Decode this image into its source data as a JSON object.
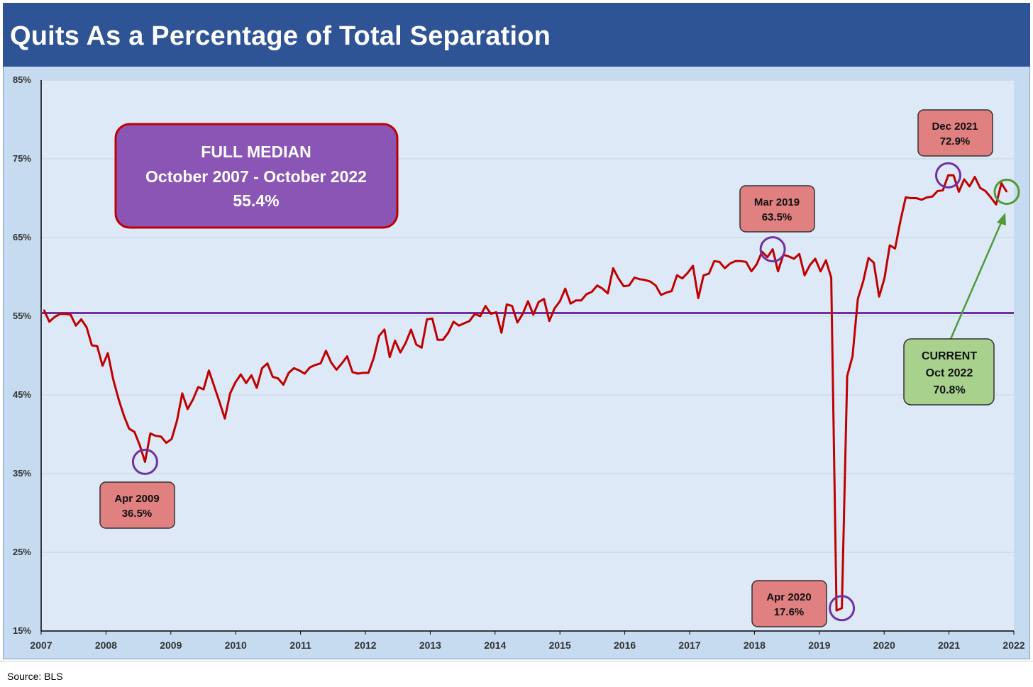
{
  "title": "Quits As a Percentage of Total Separation",
  "source": "Source: BLS",
  "colors": {
    "title_bg": "#2f5496",
    "plot_bg": "#dde9f6",
    "frame_bg": "#c6dbef",
    "series": "#c00000",
    "median_line": "#7030a0",
    "callout_red": "#e08080",
    "callout_purple": "#8a55b5",
    "callout_green": "#a9d18e",
    "current_circle": "#4f9a3a"
  },
  "median_box": {
    "line1": "FULL MEDIAN",
    "line2": "October 2007 - October 2022",
    "line3": "55.4%"
  },
  "callouts": [
    {
      "id": "apr2009",
      "line1": "Apr 2009",
      "line2": "36.5%"
    },
    {
      "id": "mar2019",
      "line1": "Mar 2019",
      "line2": "63.5%"
    },
    {
      "id": "apr2020",
      "line1": "Apr 2020",
      "line2": "17.6%"
    },
    {
      "id": "dec2021",
      "line1": "Dec 2021",
      "line2": "72.9%"
    }
  ],
  "current": {
    "line1": "CURRENT",
    "line2": "Oct 2022",
    "line3": "70.8%"
  },
  "chart_data": {
    "type": "line",
    "title": "Quits As a Percentage of Total Separation",
    "xlabel": "",
    "ylabel": "",
    "ylim": [
      15,
      85
    ],
    "y_ticks": [
      15,
      25,
      35,
      45,
      55,
      65,
      75,
      85
    ],
    "y_tick_labels": [
      "15%",
      "25%",
      "35%",
      "45%",
      "55%",
      "65%",
      "75%",
      "85%"
    ],
    "x_ticks": [
      "2007",
      "2008",
      "2009",
      "2010",
      "2011",
      "2012",
      "2013",
      "2014",
      "2015",
      "2016",
      "2017",
      "2018",
      "2019",
      "2020",
      "2021",
      "2022"
    ],
    "median": 55.4,
    "series": [
      {
        "name": "Quits as % of Total Separations",
        "values": [
          55.8,
          54.3,
          54.9,
          55.3,
          55.3,
          55.2,
          53.8,
          54.6,
          53.6,
          51.3,
          51.2,
          48.7,
          50.3,
          47.0,
          44.5,
          42.4,
          40.7,
          40.3,
          38.6,
          36.5,
          40.1,
          39.8,
          39.7,
          38.9,
          39.4,
          41.7,
          45.2,
          43.2,
          44.4,
          46.0,
          45.7,
          48.1,
          46.1,
          44.1,
          42.0,
          45.2,
          46.6,
          47.6,
          46.5,
          47.5,
          45.9,
          48.4,
          49.0,
          47.3,
          47.1,
          46.3,
          47.8,
          48.4,
          48.1,
          47.7,
          48.5,
          48.8,
          49.0,
          50.6,
          49.1,
          48.2,
          49.0,
          49.9,
          47.9,
          47.7,
          47.8,
          47.8,
          49.7,
          52.5,
          53.3,
          49.8,
          51.9,
          50.4,
          51.6,
          53.3,
          51.4,
          51.0,
          54.6,
          54.7,
          52.0,
          52.0,
          52.9,
          54.3,
          53.8,
          54.1,
          54.4,
          55.3,
          55.0,
          56.3,
          55.3,
          55.5,
          52.9,
          56.5,
          56.3,
          54.2,
          55.3,
          56.9,
          55.2,
          56.8,
          57.2,
          54.4,
          56.0,
          56.9,
          58.5,
          56.6,
          57.0,
          57.0,
          57.8,
          58.1,
          58.9,
          58.5,
          57.9,
          61.1,
          59.8,
          58.8,
          58.9,
          59.9,
          59.7,
          59.6,
          59.4,
          58.9,
          57.7,
          58.0,
          58.2,
          60.2,
          59.8,
          60.5,
          61.4,
          57.3,
          60.2,
          60.4,
          62.0,
          61.9,
          61.1,
          61.7,
          62.0,
          62.0,
          61.9,
          60.7,
          61.6,
          63.2,
          62.5,
          63.5,
          60.7,
          62.8,
          62.6,
          62.3,
          62.9,
          60.2,
          61.5,
          62.3,
          60.7,
          62.1,
          59.9,
          17.6,
          17.9,
          47.4,
          49.9,
          57.2,
          59.4,
          62.4,
          61.8,
          57.5,
          59.8,
          64.0,
          63.6,
          67.1,
          70.1,
          70.0,
          70.0,
          69.8,
          70.1,
          70.2,
          70.9,
          71.0,
          72.9,
          72.9,
          70.8,
          72.4,
          71.5,
          72.7,
          71.3,
          70.9,
          70.1,
          69.2,
          71.9,
          70.8
        ]
      }
    ],
    "annotations": [
      {
        "label": "Apr 2009",
        "value": 36.5
      },
      {
        "label": "Mar 2019",
        "value": 63.5
      },
      {
        "label": "Apr 2020",
        "value": 17.6
      },
      {
        "label": "Dec 2021",
        "value": 72.9
      },
      {
        "label": "CURRENT Oct 2022",
        "value": 70.8
      }
    ]
  }
}
